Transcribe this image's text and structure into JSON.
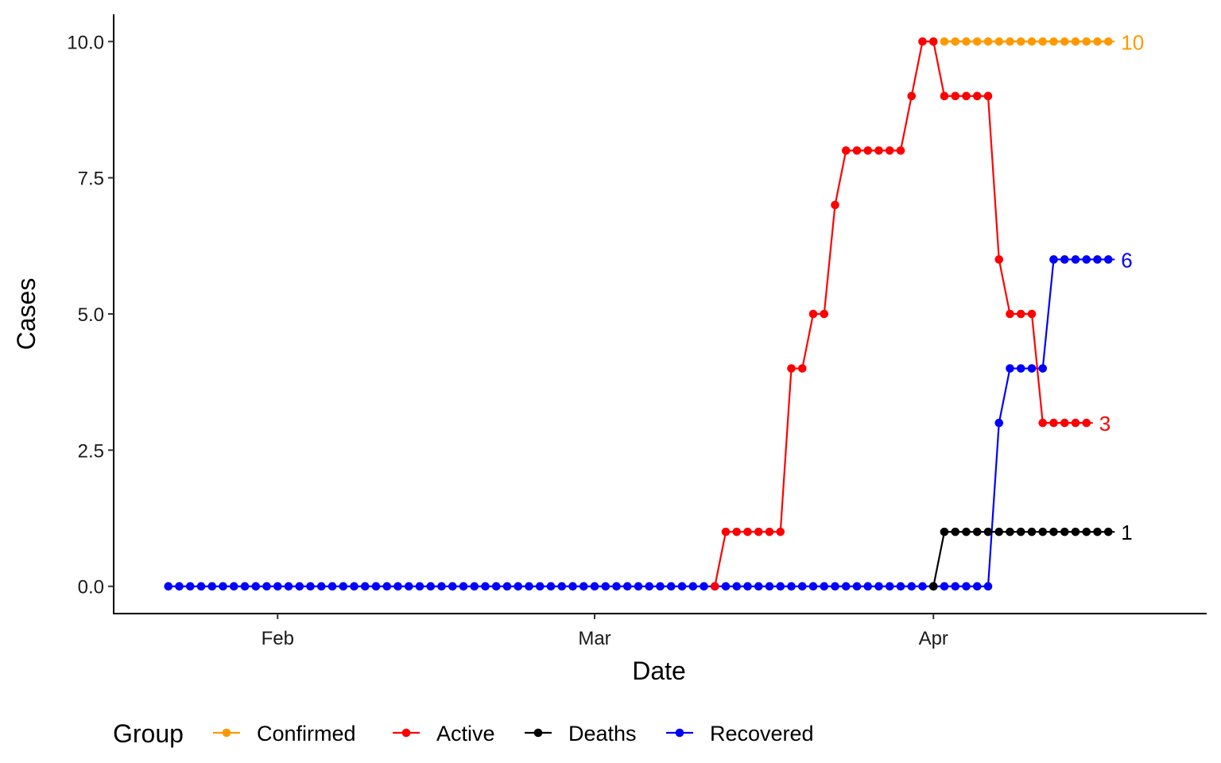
{
  "chart_data": {
    "type": "line",
    "xlabel": "Date",
    "ylabel": "Cases",
    "x_tick_labels": [
      "Feb",
      "Mar",
      "Apr"
    ],
    "x_tick_dates": [
      "2020-02-01",
      "2020-03-01",
      "2020-04-01"
    ],
    "xlim": [
      "2020-01-17",
      "2020-04-26"
    ],
    "y_ticks": [
      0.0,
      2.5,
      5.0,
      7.5,
      10.0
    ],
    "y_tick_labels": [
      "0.0",
      "2.5",
      "5.0",
      "7.5",
      "10.0"
    ],
    "ylim": [
      -0.5,
      10.5
    ],
    "grid": false,
    "legend": {
      "title": "Group",
      "position": "bottom"
    },
    "series": [
      {
        "name": "Confirmed",
        "color": "#ff9900",
        "end_label": "10",
        "points": [
          [
            "2020-04-02",
            10
          ],
          [
            "2020-04-03",
            10
          ],
          [
            "2020-04-04",
            10
          ],
          [
            "2020-04-05",
            10
          ],
          [
            "2020-04-06",
            10
          ],
          [
            "2020-04-07",
            10
          ],
          [
            "2020-04-08",
            10
          ],
          [
            "2020-04-09",
            10
          ],
          [
            "2020-04-10",
            10
          ],
          [
            "2020-04-11",
            10
          ],
          [
            "2020-04-12",
            10
          ],
          [
            "2020-04-13",
            10
          ],
          [
            "2020-04-14",
            10
          ],
          [
            "2020-04-15",
            10
          ],
          [
            "2020-04-16",
            10
          ],
          [
            "2020-04-17",
            10
          ]
        ]
      },
      {
        "name": "Active",
        "color": "#ff0000",
        "end_label": "3",
        "points": [
          [
            "2020-03-12",
            0
          ],
          [
            "2020-03-13",
            1
          ],
          [
            "2020-03-14",
            1
          ],
          [
            "2020-03-15",
            1
          ],
          [
            "2020-03-16",
            1
          ],
          [
            "2020-03-17",
            1
          ],
          [
            "2020-03-18",
            1
          ],
          [
            "2020-03-19",
            4
          ],
          [
            "2020-03-20",
            4
          ],
          [
            "2020-03-21",
            5
          ],
          [
            "2020-03-22",
            5
          ],
          [
            "2020-03-23",
            7
          ],
          [
            "2020-03-24",
            8
          ],
          [
            "2020-03-25",
            8
          ],
          [
            "2020-03-26",
            8
          ],
          [
            "2020-03-27",
            8
          ],
          [
            "2020-03-28",
            8
          ],
          [
            "2020-03-29",
            8
          ],
          [
            "2020-03-30",
            9
          ],
          [
            "2020-03-31",
            10
          ],
          [
            "2020-04-01",
            10
          ],
          [
            "2020-04-02",
            9
          ],
          [
            "2020-04-03",
            9
          ],
          [
            "2020-04-04",
            9
          ],
          [
            "2020-04-05",
            9
          ],
          [
            "2020-04-06",
            9
          ],
          [
            "2020-04-07",
            6
          ],
          [
            "2020-04-08",
            5
          ],
          [
            "2020-04-09",
            5
          ],
          [
            "2020-04-10",
            5
          ],
          [
            "2020-04-11",
            3
          ],
          [
            "2020-04-12",
            3
          ],
          [
            "2020-04-13",
            3
          ],
          [
            "2020-04-14",
            3
          ],
          [
            "2020-04-15",
            3
          ]
        ]
      },
      {
        "name": "Deaths",
        "color": "#000000",
        "end_label": "1",
        "points": [
          [
            "2020-04-01",
            0
          ],
          [
            "2020-04-02",
            1
          ],
          [
            "2020-04-03",
            1
          ],
          [
            "2020-04-04",
            1
          ],
          [
            "2020-04-05",
            1
          ],
          [
            "2020-04-06",
            1
          ],
          [
            "2020-04-07",
            1
          ],
          [
            "2020-04-08",
            1
          ],
          [
            "2020-04-09",
            1
          ],
          [
            "2020-04-10",
            1
          ],
          [
            "2020-04-11",
            1
          ],
          [
            "2020-04-12",
            1
          ],
          [
            "2020-04-13",
            1
          ],
          [
            "2020-04-14",
            1
          ],
          [
            "2020-04-15",
            1
          ],
          [
            "2020-04-16",
            1
          ],
          [
            "2020-04-17",
            1
          ]
        ]
      },
      {
        "name": "Recovered",
        "color": "#0000ff",
        "end_label": "6",
        "points": [
          [
            "2020-01-22",
            0
          ],
          [
            "2020-01-23",
            0
          ],
          [
            "2020-01-24",
            0
          ],
          [
            "2020-01-25",
            0
          ],
          [
            "2020-01-26",
            0
          ],
          [
            "2020-01-27",
            0
          ],
          [
            "2020-01-28",
            0
          ],
          [
            "2020-01-29",
            0
          ],
          [
            "2020-01-30",
            0
          ],
          [
            "2020-01-31",
            0
          ],
          [
            "2020-02-01",
            0
          ],
          [
            "2020-02-02",
            0
          ],
          [
            "2020-02-03",
            0
          ],
          [
            "2020-02-04",
            0
          ],
          [
            "2020-02-05",
            0
          ],
          [
            "2020-02-06",
            0
          ],
          [
            "2020-02-07",
            0
          ],
          [
            "2020-02-08",
            0
          ],
          [
            "2020-02-09",
            0
          ],
          [
            "2020-02-10",
            0
          ],
          [
            "2020-02-11",
            0
          ],
          [
            "2020-02-12",
            0
          ],
          [
            "2020-02-13",
            0
          ],
          [
            "2020-02-14",
            0
          ],
          [
            "2020-02-15",
            0
          ],
          [
            "2020-02-16",
            0
          ],
          [
            "2020-02-17",
            0
          ],
          [
            "2020-02-18",
            0
          ],
          [
            "2020-02-19",
            0
          ],
          [
            "2020-02-20",
            0
          ],
          [
            "2020-02-21",
            0
          ],
          [
            "2020-02-22",
            0
          ],
          [
            "2020-02-23",
            0
          ],
          [
            "2020-02-24",
            0
          ],
          [
            "2020-02-25",
            0
          ],
          [
            "2020-02-26",
            0
          ],
          [
            "2020-02-27",
            0
          ],
          [
            "2020-02-28",
            0
          ],
          [
            "2020-02-29",
            0
          ],
          [
            "2020-03-01",
            0
          ],
          [
            "2020-03-02",
            0
          ],
          [
            "2020-03-03",
            0
          ],
          [
            "2020-03-04",
            0
          ],
          [
            "2020-03-05",
            0
          ],
          [
            "2020-03-06",
            0
          ],
          [
            "2020-03-07",
            0
          ],
          [
            "2020-03-08",
            0
          ],
          [
            "2020-03-09",
            0
          ],
          [
            "2020-03-10",
            0
          ],
          [
            "2020-03-11",
            0
          ],
          [
            "2020-03-12",
            0
          ],
          [
            "2020-03-13",
            0
          ],
          [
            "2020-03-14",
            0
          ],
          [
            "2020-03-15",
            0
          ],
          [
            "2020-03-16",
            0
          ],
          [
            "2020-03-17",
            0
          ],
          [
            "2020-03-18",
            0
          ],
          [
            "2020-03-19",
            0
          ],
          [
            "2020-03-20",
            0
          ],
          [
            "2020-03-21",
            0
          ],
          [
            "2020-03-22",
            0
          ],
          [
            "2020-03-23",
            0
          ],
          [
            "2020-03-24",
            0
          ],
          [
            "2020-03-25",
            0
          ],
          [
            "2020-03-26",
            0
          ],
          [
            "2020-03-27",
            0
          ],
          [
            "2020-03-28",
            0
          ],
          [
            "2020-03-29",
            0
          ],
          [
            "2020-03-30",
            0
          ],
          [
            "2020-03-31",
            0
          ],
          [
            "2020-04-01",
            0
          ],
          [
            "2020-04-02",
            0
          ],
          [
            "2020-04-03",
            0
          ],
          [
            "2020-04-04",
            0
          ],
          [
            "2020-04-05",
            0
          ],
          [
            "2020-04-06",
            0
          ],
          [
            "2020-04-07",
            3
          ],
          [
            "2020-04-08",
            4
          ],
          [
            "2020-04-09",
            4
          ],
          [
            "2020-04-10",
            4
          ],
          [
            "2020-04-11",
            4
          ],
          [
            "2020-04-12",
            6
          ],
          [
            "2020-04-13",
            6
          ],
          [
            "2020-04-14",
            6
          ],
          [
            "2020-04-15",
            6
          ],
          [
            "2020-04-16",
            6
          ],
          [
            "2020-04-17",
            6
          ]
        ]
      }
    ]
  }
}
